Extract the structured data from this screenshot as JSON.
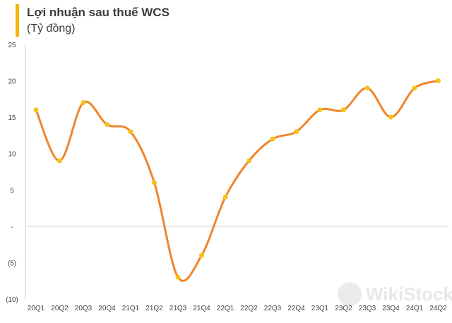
{
  "chart_data": {
    "type": "line",
    "title": "Lợi nhuận sau thuế WCS",
    "subtitle": "(Tỷ đồng)",
    "categories": [
      "20Q1",
      "20Q2",
      "20Q3",
      "20Q4",
      "21Q1",
      "21Q2",
      "21Q3",
      "21Q4",
      "22Q1",
      "22Q2",
      "22Q3",
      "22Q4",
      "23Q1",
      "23Q2",
      "23Q3",
      "23Q4",
      "24Q1",
      "24Q2"
    ],
    "series": [
      {
        "values": [
          16,
          9,
          17,
          14,
          13,
          6,
          -7,
          -4,
          4,
          9,
          12,
          13,
          16,
          16,
          19,
          15,
          19,
          20
        ]
      }
    ],
    "ylim": [
      -10,
      25
    ],
    "yticks": [
      -10,
      -5,
      0,
      5,
      10,
      15,
      20,
      25
    ],
    "ytick_labels": [
      "(10)",
      "(5)",
      "-",
      "5",
      "10",
      "15",
      "20",
      "25"
    ],
    "grid": false,
    "line_color": "#f0852d",
    "marker_color": "#f7c21b",
    "watermark": "WikiStock"
  }
}
